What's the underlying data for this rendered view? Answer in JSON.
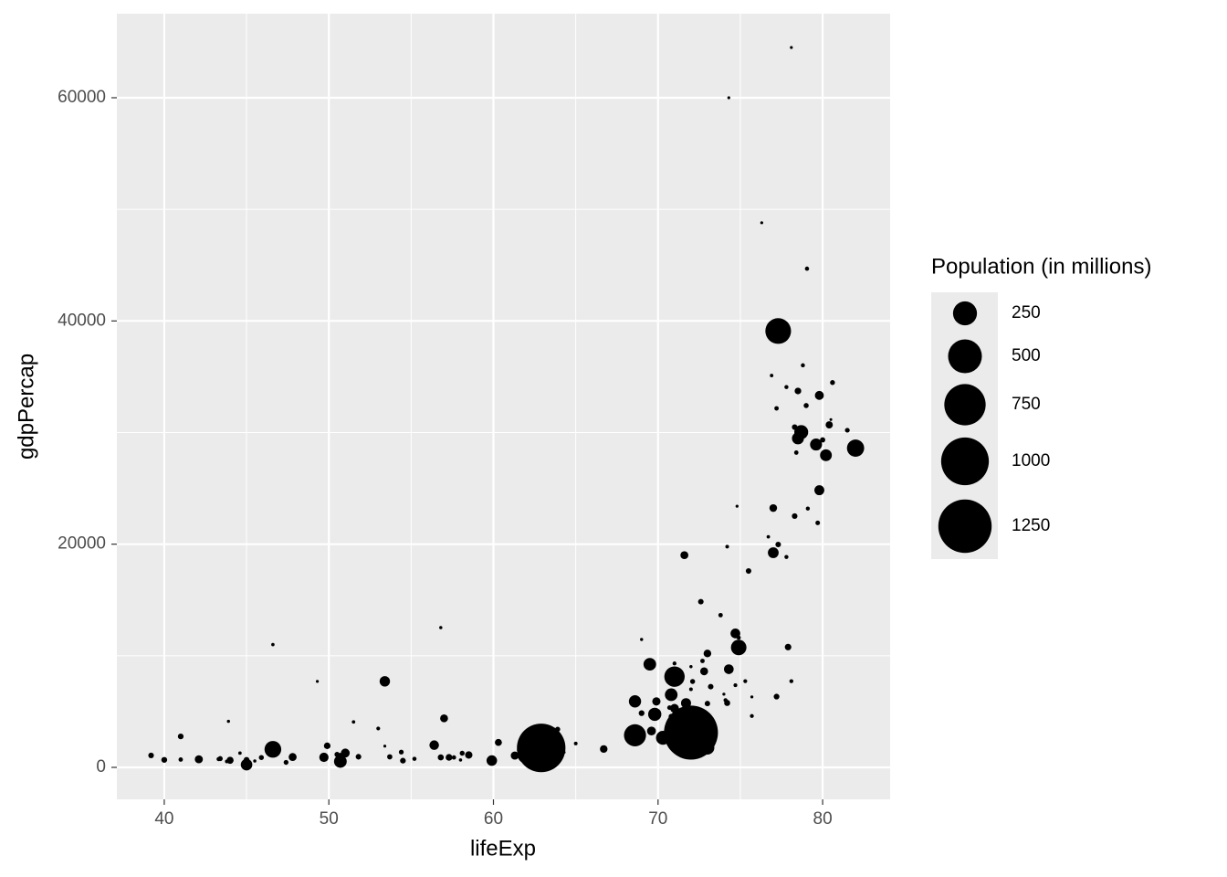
{
  "chart_data": {
    "type": "scatter",
    "x_label": "lifeExp",
    "y_label": "gdpPercap",
    "xlim": [
      37.12,
      84.1
    ],
    "xticks": [
      40,
      50,
      60,
      70,
      80
    ],
    "ylim": [
      -2865,
      67530
    ],
    "yticks": [
      0,
      20000,
      40000,
      60000
    ],
    "grid": true,
    "minor_grid": true,
    "color": "#000000",
    "size_legend": {
      "title": "Population (in millions)",
      "breaks": [
        250,
        500,
        750,
        1000,
        1250
      ]
    },
    "x": [
      42.1,
      75.7,
      71.0,
      41.0,
      74.3,
      80.4,
      79.0,
      74.8,
      62.0,
      78.3,
      54.4,
      63.9,
      74.1,
      46.6,
      71.0,
      72.1,
      50.7,
      47.4,
      56.8,
      49.9,
      79.8,
      43.3,
      50.5,
      77.9,
      72.0,
      71.7,
      63.0,
      45.0,
      53.0,
      78.1,
      46.8,
      74.9,
      77.2,
      75.5,
      77.2,
      53.4,
      70.8,
      74.2,
      69.8,
      70.7,
      49.3,
      55.2,
      50.7,
      78.4,
      79.6,
      56.8,
      58.0,
      78.7,
      58.5,
      78.3,
      69.0,
      53.7,
      45.5,
      58.1,
      68.6,
      81.5,
      72.6,
      80.5,
      62.9,
      68.6,
      69.5,
      57.0,
      77.8,
      79.7,
      80.2,
      72.0,
      82.0,
      71.3,
      51.0,
      66.7,
      77.0,
      76.9,
      71.0,
      44.6,
      43.8,
      72.7,
      57.3,
      45.0,
      73.0,
      51.8,
      62.2,
      72.0,
      74.9,
      65.0,
      74.0,
      69.6,
      44.0,
      59.9,
      51.5,
      61.3,
      78.5,
      79.1,
      70.8,
      54.5,
      46.6,
      79.05,
      74.2,
      63.6,
      74.7,
      70.8,
      69.9,
      70.3,
      74.7,
      77.3,
      77.8,
      75.7,
      71.3,
      43.4,
      64.3,
      71.6,
      61.6,
      73.2,
      41.0,
      78.8,
      73.8,
      76.7,
      45.9,
      53.4,
      79.8,
      70.8,
      56.4,
      43.9,
      80.0,
      80.6,
      73.1,
      77.0,
      49.7,
      68.6,
      57.6,
      69.0,
      73.0,
      70.8,
      47.8,
      78.5,
      77.3,
      75.3,
      72.8,
      73.0,
      72.4,
      60.3,
      39.2,
      40.0,
      78.1,
      74.3,
      76.3
    ],
    "values": [
      727,
      4604,
      5288,
      2773,
      8798,
      30688,
      32418,
      23404,
      1136,
      30486,
      1373,
      3413,
      6019,
      11004,
      8131,
      7697,
      1038,
      446,
      896,
      1934,
      33329,
      739,
      1156,
      10779,
      3119,
      5755,
      1076,
      241,
      3484,
      7724,
      1649,
      11628,
      6341,
      17596,
      32167,
      1908,
      4564,
      5773,
      4755,
      5351,
      7703,
      765,
      531,
      28205,
      28926,
      12522,
      661,
      30036,
      1112,
      22514,
      4858,
      945,
      575,
      1270,
      3099,
      30209,
      14843,
      31163,
      1747,
      2874,
      9241,
      4391,
      34077,
      21906,
      27968,
      6994,
      28605,
      3845,
      1288,
      1647,
      19234,
      35110,
      9313,
      1275,
      531,
      9535,
      894,
      665,
      10207,
      952,
      1579,
      9022,
      10742,
      2140,
      6557,
      3258,
      633,
      611,
      4072,
      1057,
      33725,
      23190,
      2474,
      601,
      1615,
      44684,
      19775,
      2093,
      7357,
      3784,
      5909,
      2651,
      12002,
      19971,
      18856,
      6316,
      7885,
      786,
      1353,
      19014,
      1520,
      7236,
      699,
      36023,
      13639,
      20660,
      882,
      7711,
      24835,
      3015,
      1993,
      4128,
      29341,
      34481,
      4091,
      23235,
      900,
      5913,
      886,
      11461,
      5723,
      6508,
      928,
      29479,
      39097,
      7727,
      8605,
      1764,
      4515,
      2235,
      1072,
      672,
      64500,
      60000,
      48800
    ],
    "sizes": [
      25.3,
      3.5,
      31.3,
      10.9,
      38.3,
      19.5,
      8.1,
      0.66,
      135.7,
      10.3,
      7.0,
      8.4,
      4.2,
      1.6,
      179.9,
      7.7,
      12.3,
      7.0,
      12.9,
      15.9,
      31.9,
      4.05,
      8.8,
      15.5,
      1280.4,
      41.0,
      0.6,
      55.4,
      3.3,
      3.8,
      16.3,
      4.5,
      11.2,
      10.3,
      5.4,
      0.45,
      8.65,
      12.9,
      73.3,
      6.35,
      0.5,
      4.4,
      67.9,
      5.2,
      59.9,
      1.3,
      1.5,
      82.4,
      20.6,
      10.6,
      11.2,
      8.8,
      1.3,
      7.6,
      6.7,
      6.8,
      10.1,
      0.29,
      1034.2,
      211.1,
      66.6,
      24.0,
      3.9,
      6.0,
      57.9,
      2.66,
      127.1,
      5.3,
      31.4,
      22.2,
      47.97,
      2.1,
      3.7,
      2.0,
      2.8,
      5.4,
      16.5,
      11.8,
      22.7,
      10.6,
      2.8,
      1.2,
      102.5,
      2.7,
      0.72,
      31.2,
      18.5,
      45.6,
      1.97,
      25.9,
      16.1,
      3.9,
      5.1,
      11.1,
      119.9,
      4.5,
      2.7,
      153.4,
      2.99,
      5.9,
      26.8,
      82.99,
      38.6,
      10.4,
      3.86,
      0.74,
      22.4,
      7.85,
      0.17,
      24.5,
      10.9,
      10.1,
      5.4,
      4.2,
      5.4,
      2.0,
      7.75,
      44.4,
      40.2,
      19.6,
      37.1,
      1.1,
      8.95,
      7.4,
      17.2,
      22.45,
      34.6,
      62.8,
      4.98,
      1.1,
      9.8,
      67.3,
      24.7,
      59.9,
      287.7,
      3.36,
      24.3,
      80.9,
      3.4,
      18.7,
      10.6,
      11.9,
      0.5,
      0.5,
      0.5
    ]
  }
}
